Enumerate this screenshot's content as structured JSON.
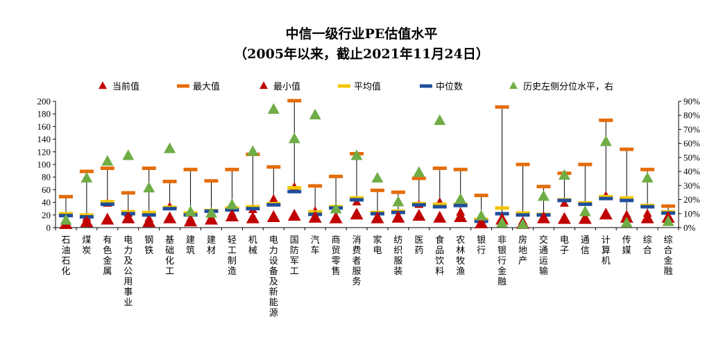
{
  "chart_data": {
    "type": "scatter",
    "title": "中信一级行业PE估值水平",
    "subtitle": "（2005年以来，截止2021年11月24日）",
    "left_axis": {
      "min": 0,
      "max": 200,
      "step": 20,
      "ticks": [
        "0",
        "20",
        "40",
        "60",
        "80",
        "100",
        "120",
        "140",
        "160",
        "180",
        "200"
      ]
    },
    "right_axis": {
      "min": 0,
      "max": 90,
      "step": 10,
      "ticks": [
        "0%",
        "10%",
        "20%",
        "30%",
        "40%",
        "50%",
        "60%",
        "70%",
        "80%",
        "90%"
      ]
    },
    "legend_position": "top",
    "grid": false,
    "categories": [
      "石油石化",
      "煤炭",
      "有色金属",
      "电力及公用事业",
      "钢铁",
      "基础化工",
      "建筑",
      "建材",
      "轻工制造",
      "机械",
      "电力设备及新能源",
      "国防军工",
      "汽车",
      "商贸零售",
      "消费者服务",
      "家电",
      "纺织服装",
      "医药",
      "食品饮料",
      "农林牧渔",
      "银行",
      "非银行金融",
      "房地产",
      "交通运输",
      "电子",
      "通信",
      "计算机",
      "传媒",
      "综合",
      "综合金融"
    ],
    "series": [
      {
        "name": "当前值",
        "marker": "triangle",
        "color": "#c00000",
        "values": [
          5,
          8,
          12,
          14,
          8,
          14,
          9,
          12,
          17,
          14,
          16,
          18,
          15,
          14,
          20,
          14,
          15,
          18,
          15,
          16,
          6,
          12,
          5,
          14,
          13,
          13,
          20,
          15,
          14,
          15
        ]
      },
      {
        "name": "最大值",
        "marker": "dash",
        "color": "#e46c0a",
        "values": [
          49,
          89,
          94,
          55,
          94,
          73,
          92,
          74,
          92,
          116,
          96,
          201,
          66,
          81,
          117,
          59,
          56,
          78,
          94,
          92,
          51,
          191,
          100,
          65,
          86,
          100,
          170,
          124,
          92,
          34
        ]
      },
      {
        "name": "最小值",
        "marker": "triangle",
        "color": "#c00000",
        "values": [
          12,
          15,
          38,
          22,
          14,
          33,
          14,
          16,
          22,
          28,
          45,
          64,
          26,
          14,
          40,
          16,
          17,
          36,
          40,
          24,
          9,
          12,
          10,
          14,
          38,
          14,
          50,
          20,
          22,
          18
        ]
      },
      {
        "name": "平均值",
        "marker": "dash",
        "color": "#f2c600",
        "values": [
          22,
          20,
          41,
          25,
          24,
          32,
          23,
          27,
          31,
          33,
          38,
          63,
          25,
          33,
          47,
          24,
          26,
          38,
          37,
          37,
          13,
          31,
          23,
          21,
          44,
          39,
          49,
          47,
          35,
          25
        ]
      },
      {
        "name": "中位数",
        "marker": "dash",
        "color": "#1f4e9b",
        "values": [
          19,
          17,
          37,
          22,
          20,
          30,
          20,
          26,
          28,
          30,
          36,
          57,
          21,
          31,
          44,
          22,
          24,
          36,
          33,
          35,
          10,
          22,
          20,
          20,
          43,
          37,
          46,
          43,
          33,
          23
        ]
      },
      {
        "name": "历史左侧分位水平，右",
        "marker": "triangle",
        "color": "#70ad47",
        "axis": "right",
        "values": [
          5,
          35,
          47,
          51,
          28,
          56,
          11,
          10,
          16,
          54,
          84,
          63,
          80,
          13,
          51,
          35,
          18,
          39,
          76,
          20,
          8,
          3,
          2,
          22,
          37,
          11,
          61,
          3,
          35,
          4
        ]
      }
    ]
  }
}
